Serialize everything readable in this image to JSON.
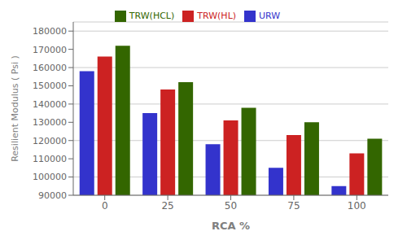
{
  "chart_data": {
    "type": "bar",
    "categories": [
      "0",
      "25",
      "50",
      "75",
      "100"
    ],
    "series": [
      {
        "name": "URW",
        "color": "#3333cc",
        "values": [
          158000,
          135000,
          118000,
          105000,
          95000
        ]
      },
      {
        "name": "TRW(HL)",
        "color": "#cc2222",
        "values": [
          166000,
          148000,
          131000,
          123000,
          113000
        ]
      },
      {
        "name": "TRW(HCL)",
        "color": "#336600",
        "values": [
          172000,
          152000,
          138000,
          130000,
          121000
        ]
      }
    ],
    "xlabel": "RCA %",
    "ylabel": "Resilient Modulus ( Psi )",
    "ylim": [
      90000,
      185000
    ],
    "yticks": [
      90000,
      100000,
      110000,
      120000,
      130000,
      140000,
      150000,
      160000,
      170000,
      180000
    ],
    "grid": true,
    "legend": "top"
  }
}
